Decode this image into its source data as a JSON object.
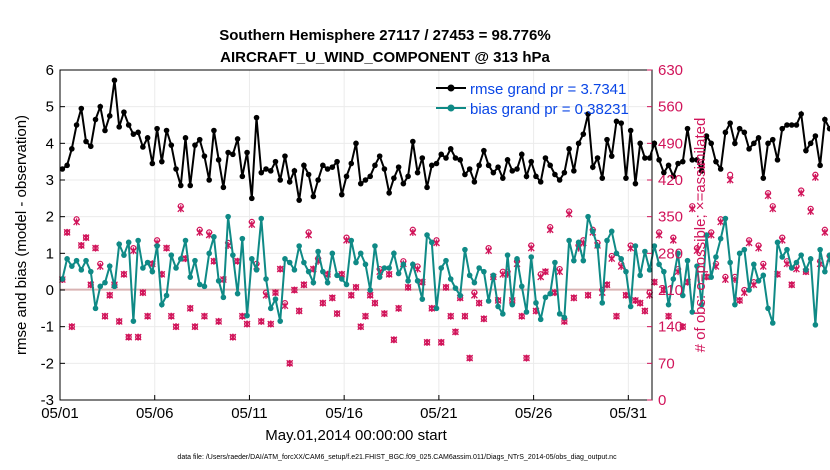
{
  "chart_data": {
    "type": "line",
    "title_line1": "Southern Hemisphere 27117 / 27453 = 98.776%",
    "title_line2": "AIRCRAFT_U_WIND_COMPONENT @ 313 hPa",
    "xlabel": "May.01,2014 00:00:00 start",
    "ylabel_left": "rmse and bias (model - observation)",
    "ylabel_right": "# of obs: o=possible; ×=assimilated",
    "footer": "data file: /Users/raeder/DAI/ATM_forcXX/CAM6_setup/f.e21.FHIST_BGC.f09_025.CAM6assim.011/Diags_NTrS_2014-05/obs_diag_output.nc",
    "xlim": [
      0,
      31.25
    ],
    "ylim_left": [
      -3,
      6
    ],
    "ylim_right": [
      0,
      630
    ],
    "x_ticks": [
      {
        "value": 0,
        "label": "05/01"
      },
      {
        "value": 5,
        "label": "05/06"
      },
      {
        "value": 10,
        "label": "05/11"
      },
      {
        "value": 15,
        "label": "05/16"
      },
      {
        "value": 20,
        "label": "05/21"
      },
      {
        "value": 25,
        "label": "05/26"
      },
      {
        "value": 30,
        "label": "05/31"
      }
    ],
    "y_ticks_left": [
      "-3",
      "-2",
      "-1",
      "0",
      "1",
      "2",
      "3",
      "4",
      "5",
      "6"
    ],
    "y_ticks_right": [
      "0",
      "70",
      "140",
      "210",
      "280",
      "350",
      "420",
      "490",
      "560",
      "630"
    ],
    "colors": {
      "rmse": "#000000",
      "bias": "#0f8a86",
      "obs": "#d1145a",
      "zero_line": "#d9b3b3",
      "legend_text": "#0a46e6",
      "grid": "#ebebeb"
    },
    "series": [
      {
        "name": "rmse",
        "legend": "rmse grand pr = 3.7341",
        "values": [
          3.3,
          3.4,
          3.85,
          4.5,
          4.95,
          4.05,
          3.92,
          4.65,
          5.0,
          4.35,
          4.75,
          5.72,
          4.45,
          4.85,
          4.5,
          4.25,
          4.3,
          3.9,
          4.15,
          3.45,
          4.4,
          3.5,
          4.35,
          3.95,
          3.3,
          2.85,
          4.15,
          2.85,
          3.95,
          4.1,
          3.65,
          3.0,
          4.35,
          3.55,
          2.8,
          3.75,
          3.7,
          4.12,
          3.1,
          3.75,
          2.5,
          4.7,
          3.2,
          3.3,
          3.25,
          3.5,
          3.0,
          3.65,
          2.95,
          3.25,
          2.45,
          3.4,
          3.15,
          2.55,
          3.0,
          3.4,
          3.3,
          3.35,
          3.5,
          2.6,
          3.1,
          3.45,
          4.0,
          2.9,
          3.0,
          3.1,
          3.4,
          3.65,
          3.3,
          2.65,
          3.05,
          3.35,
          2.9,
          3.1,
          4.05,
          3.2,
          3.6,
          2.8,
          3.4,
          3.45,
          3.7,
          3.6,
          3.85,
          3.6,
          3.55,
          3.15,
          3.3,
          2.95,
          3.4,
          3.8,
          3.4,
          3.2,
          3.35,
          3.05,
          3.55,
          3.25,
          3.3,
          3.7,
          3.1,
          3.5,
          3.1,
          2.95,
          3.6,
          3.4,
          3.15,
          3.0,
          3.2,
          3.85,
          3.25,
          4.0,
          4.25,
          4.8,
          3.35,
          3.6,
          3.05,
          4.1,
          3.65,
          4.6,
          4.55,
          3.05,
          4.35,
          2.9,
          4.0,
          3.6,
          3.6,
          4.0,
          3.55,
          3.2,
          3.4,
          3.1,
          3.45,
          3.5,
          4.4,
          3.55,
          3.55,
          3.25,
          4.2,
          4.0,
          3.5,
          3.3,
          4.3,
          4.55,
          4.0,
          4.4,
          4.3,
          3.85,
          4.0,
          4.15,
          3.05,
          4.0,
          4.1,
          3.55,
          4.4,
          4.5,
          4.5,
          4.5,
          4.8,
          3.8,
          4.0,
          4.2,
          3.4,
          4.65,
          4.4,
          4.6,
          4.4,
          3.8,
          4.3,
          3.15,
          4.2,
          3.4,
          3.9,
          3.0,
          3.5,
          3.15,
          3.75,
          4.35,
          3.0,
          3.2,
          3.1,
          4.55,
          5.2,
          5.15
        ]
      },
      {
        "name": "bias",
        "legend": "bias grand pr = 0.38231",
        "values": [
          0.3,
          0.85,
          0.65,
          0.8,
          0.55,
          0.8,
          0.5,
          -0.5,
          0.1,
          0.2,
          0.65,
          0.1,
          1.25,
          0.95,
          1.3,
          -0.85,
          1.35,
          0.6,
          0.75,
          0.5,
          1.2,
          -0.4,
          -0.15,
          0.95,
          0.6,
          0.85,
          1.35,
          0.35,
          0.8,
          0.15,
          0.1,
          1.0,
          1.45,
          0.25,
          -0.2,
          2.0,
          0.95,
          -0.1,
          1.4,
          -0.7,
          0.85,
          0.55,
          1.95,
          0.3,
          -0.5,
          -0.25,
          -0.85,
          0.85,
          0.75,
          0.55,
          1.2,
          0.75,
          0.5,
          0.2,
          1.05,
          0.5,
          0.2,
          1.0,
          0.4,
          0.3,
          0.15,
          1.35,
          0.75,
          1.0,
          0.7,
          0.0,
          1.2,
          0.35,
          0.6,
          0.6,
          1.0,
          0.45,
          0.7,
          0.25,
          0.7,
          0.25,
          -0.25,
          1.5,
          1.3,
          -0.5,
          0.6,
          0.8,
          0.3,
          0.05,
          -0.15,
          1.1,
          0.4,
          0.2,
          0.6,
          0.5,
          -0.3,
          0.4,
          -0.45,
          -0.65,
          0.95,
          -0.4,
          0.85,
          0.1,
          -0.6,
          0.9,
          -0.35,
          -0.8,
          -0.2,
          -0.1,
          0.75,
          -0.65,
          -0.75,
          1.35,
          0.8,
          1.3,
          0.8,
          2.0,
          1.6,
          1.2,
          -0.35,
          1.35,
          1.6,
          1.0,
          0.85,
          0.5,
          -0.45,
          1.2,
          0.4,
          1.05,
          0.55,
          1.2,
          0.7,
          0.5,
          -0.4,
          0.3,
          1.0,
          -0.15,
          0.8,
          -0.6,
          0.65,
          -0.4,
          1.5,
          0.35,
          0.9,
          1.4,
          1.95,
          0.75,
          -0.4,
          1.0,
          1.1,
          0.0,
          0.7,
          0.25,
          0.4,
          -0.5,
          -0.9,
          1.3,
          0.9,
          1.1,
          0.6,
          0.75,
          0.95,
          0.55,
          0.85,
          -0.95,
          1.1,
          0.5,
          0.95,
          -0.15,
          0.6,
          0.7,
          1.1,
          -0.25,
          0.6,
          -0.3,
          0.8,
          0.65,
          -0.45,
          0.5,
          0.0,
          1.4,
          0.3,
          1.35,
          0.0,
          0.1,
          -0.2,
          1.05,
          1.55,
          0.0,
          -0.25,
          1.7
        ]
      },
      {
        "name": "obs_possible",
        "values": [
          230,
          320,
          140,
          345,
          295,
          310,
          220,
          290,
          260,
          160,
          200,
          220,
          150,
          240,
          120,
          290,
          120,
          205,
          160,
          260,
          305,
          240,
          290,
          160,
          140,
          370,
          270,
          175,
          140,
          325,
          160,
          320,
          265,
          150,
          230,
          300,
          120,
          265,
          160,
          145,
          340,
          260,
          150,
          205,
          145,
          205,
          250,
          185,
          70,
          210,
          170,
          220,
          320,
          250,
          270,
          185,
          240,
          195,
          165,
          240,
          310,
          200,
          215,
          140,
          160,
          200,
          185,
          250,
          165,
          240,
          115,
          175,
          265,
          215,
          325,
          255,
          225,
          110,
          175,
          305,
          110,
          215,
          160,
          130,
          195,
          160,
          80,
          205,
          185,
          155,
          290,
          235,
          190,
          245,
          245,
          190,
          265,
          160,
          80,
          295,
          170,
          240,
          245,
          330,
          205,
          250,
          150,
          360,
          195,
          295,
          305,
          200,
          325,
          300,
          210,
          220,
          275,
          160,
          260,
          200,
          295,
          190,
          185,
          170,
          205,
          225,
          320,
          210,
          160,
          310,
          250,
          140,
          225,
          370,
          290,
          450,
          235,
          320,
          260,
          345,
          235,
          430,
          235,
          190,
          210,
          305,
          225,
          295,
          260,
          395,
          370,
          240,
          310,
          265,
          220,
          255,
          400,
          245,
          365,
          430,
          265,
          325,
          275,
          330,
          170,
          470,
          300,
          250,
          210,
          370,
          400,
          425,
          275,
          220,
          255,
          290,
          405,
          260,
          170,
          225,
          120,
          145,
          225,
          235,
          200,
          250,
          450,
          320,
          385,
          290,
          215,
          220,
          270,
          150,
          330,
          270
        ]
      },
      {
        "name": "obs_assimilated",
        "values": [
          230,
          320,
          140,
          340,
          295,
          310,
          220,
          290,
          255,
          160,
          200,
          220,
          150,
          240,
          120,
          285,
          120,
          205,
          160,
          260,
          300,
          240,
          290,
          160,
          140,
          365,
          270,
          175,
          140,
          320,
          160,
          315,
          265,
          150,
          230,
          295,
          120,
          265,
          160,
          145,
          335,
          255,
          150,
          200,
          145,
          205,
          250,
          180,
          70,
          210,
          170,
          220,
          315,
          250,
          265,
          185,
          240,
          195,
          165,
          240,
          305,
          200,
          215,
          140,
          160,
          200,
          185,
          245,
          165,
          240,
          115,
          175,
          260,
          215,
          320,
          250,
          225,
          110,
          175,
          300,
          110,
          215,
          160,
          130,
          195,
          160,
          80,
          200,
          185,
          155,
          285,
          235,
          190,
          240,
          240,
          190,
          260,
          160,
          80,
          290,
          170,
          235,
          245,
          325,
          205,
          245,
          150,
          355,
          195,
          290,
          300,
          200,
          320,
          295,
          205,
          220,
          270,
          160,
          255,
          200,
          290,
          190,
          185,
          170,
          200,
          225,
          315,
          210,
          160,
          305,
          245,
          140,
          225,
          365,
          285,
          440,
          235,
          315,
          255,
          340,
          230,
          420,
          230,
          190,
          205,
          300,
          220,
          290,
          255,
          390,
          365,
          240,
          305,
          260,
          220,
          250,
          395,
          245,
          360,
          425,
          260,
          320,
          270,
          325,
          170,
          460,
          295,
          245,
          205,
          365,
          395,
          415,
          270,
          215,
          250,
          285,
          400,
          255,
          170,
          220,
          120,
          145,
          225,
          230,
          200,
          250,
          440,
          315,
          380,
          285,
          210,
          215,
          265,
          145,
          325,
          265
        ]
      }
    ]
  }
}
